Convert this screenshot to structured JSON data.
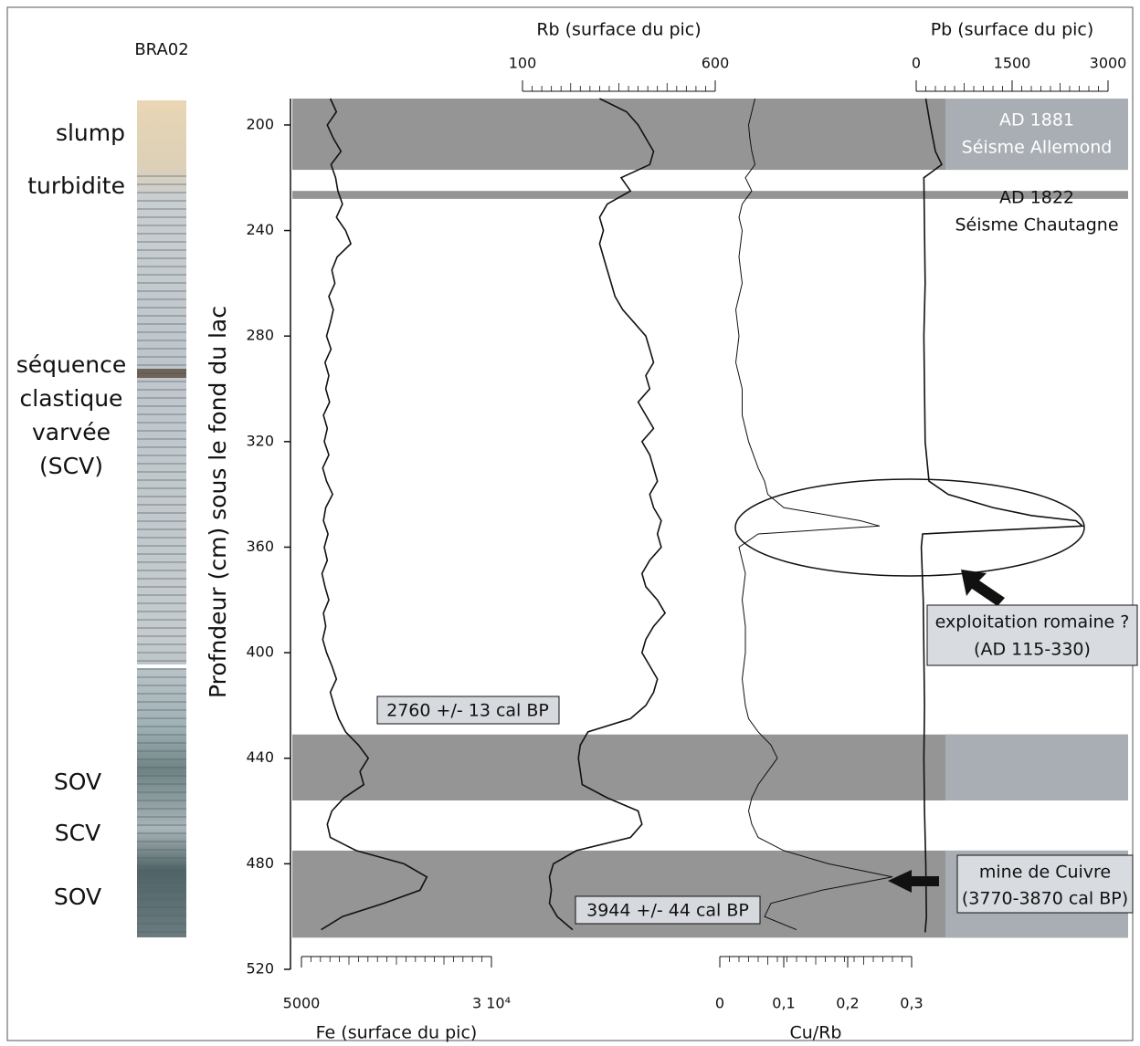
{
  "core": {
    "name": "BRA02",
    "units": [
      "slump",
      "turbidite",
      "séquence",
      "clastique",
      "varvée",
      "(SCV)",
      "SOV",
      "SCV",
      "SOV"
    ]
  },
  "chart_data": [
    {
      "type": "line",
      "xlabel": "Fe (surface du pic)",
      "axis_position": "bottom",
      "xlim": [
        5000,
        30000
      ],
      "xticks": [
        5000,
        {
          "value": 30000,
          "label": "3 10⁴"
        }
      ],
      "ylabel": "Profndeur (cm) sous le fond du lac",
      "ylim": [
        190,
        520
      ],
      "yticks": [
        200,
        240,
        280,
        320,
        360,
        400,
        440,
        480,
        520
      ],
      "bands": [
        [
          190,
          217
        ],
        [
          225,
          228
        ],
        [
          431,
          456
        ],
        [
          475,
          508
        ]
      ],
      "annotations": [
        "AD 1881",
        "Séisme Allemond",
        "AD 1822",
        "Séisme Chautagne",
        "exploitation romaine ?",
        "(AD 115-330)",
        "mine de Cuivre",
        "(3770-3870 cal BP)",
        "2760 +/- 13 cal BP",
        "3944  +/- 44 cal BP"
      ],
      "y": [
        190,
        195,
        200,
        205,
        210,
        215,
        220,
        225,
        230,
        235,
        240,
        245,
        250,
        255,
        260,
        265,
        270,
        275,
        280,
        285,
        290,
        295,
        300,
        305,
        310,
        315,
        320,
        325,
        330,
        335,
        340,
        345,
        350,
        355,
        360,
        365,
        370,
        375,
        380,
        385,
        390,
        395,
        400,
        405,
        410,
        415,
        420,
        425,
        430,
        435,
        440,
        445,
        450,
        455,
        460,
        465,
        470,
        475,
        480,
        485,
        490,
        495,
        500,
        505
      ],
      "values": [
        8800,
        9600,
        8400,
        9200,
        10200,
        8900,
        9500,
        9800,
        10400,
        9600,
        10800,
        11500,
        9700,
        9000,
        9400,
        8600,
        9200,
        8800,
        8300,
        8900,
        8100,
        8600,
        8200,
        8700,
        7900,
        8400,
        8000,
        8600,
        7800,
        8300,
        9100,
        8200,
        7900,
        8500,
        8000,
        8400,
        7700,
        8100,
        8600,
        7900,
        8200,
        7800,
        8300,
        9000,
        9600,
        8800,
        9300,
        9900,
        10800,
        12500,
        13800,
        12700,
        13200,
        10600,
        9000,
        8400,
        8800,
        12200,
        18500,
        21500,
        20600,
        15800,
        10400,
        7600
      ]
    },
    {
      "type": "line",
      "xlabel": "Rb (surface du pic)",
      "axis_position": "top",
      "xlim": [
        100,
        600
      ],
      "xticks": [
        100,
        600
      ],
      "y": [
        190,
        195,
        200,
        205,
        210,
        215,
        220,
        225,
        230,
        235,
        240,
        245,
        250,
        255,
        260,
        265,
        270,
        275,
        280,
        285,
        290,
        295,
        300,
        305,
        310,
        315,
        320,
        325,
        330,
        335,
        340,
        345,
        350,
        355,
        360,
        365,
        370,
        375,
        380,
        385,
        390,
        395,
        400,
        405,
        410,
        415,
        420,
        425,
        430,
        435,
        440,
        445,
        450,
        455,
        460,
        465,
        470,
        475,
        480,
        485,
        490,
        495,
        500,
        505
      ],
      "values": [
        300,
        370,
        400,
        420,
        440,
        430,
        356,
        380,
        320,
        300,
        310,
        300,
        310,
        320,
        330,
        340,
        360,
        390,
        420,
        430,
        440,
        420,
        430,
        400,
        420,
        440,
        410,
        430,
        440,
        450,
        430,
        440,
        460,
        450,
        460,
        430,
        410,
        420,
        450,
        470,
        440,
        420,
        410,
        430,
        450,
        440,
        420,
        380,
        270,
        250,
        245,
        250,
        255,
        320,
        400,
        410,
        380,
        240,
        180,
        170,
        175,
        170,
        190,
        230
      ]
    },
    {
      "type": "line",
      "xlabel": "Cu/Rb",
      "axis_position": "bottom",
      "xlim": [
        0,
        0.3
      ],
      "xticks": [
        0,
        {
          "value": 0.1,
          "label": "0,1"
        },
        {
          "value": 0.2,
          "label": "0,2"
        },
        {
          "value": 0.3,
          "label": "0,3"
        }
      ],
      "y": [
        190,
        195,
        200,
        205,
        210,
        215,
        220,
        225,
        230,
        235,
        240,
        250,
        260,
        270,
        280,
        290,
        300,
        310,
        320,
        330,
        335,
        340,
        345,
        350,
        352,
        355,
        360,
        370,
        380,
        390,
        400,
        410,
        420,
        425,
        430,
        435,
        440,
        445,
        450,
        455,
        460,
        465,
        470,
        475,
        480,
        485,
        490,
        495,
        500,
        505
      ],
      "values": [
        0.055,
        0.05,
        0.045,
        0.047,
        0.05,
        0.055,
        0.04,
        0.05,
        0.035,
        0.03,
        0.035,
        0.03,
        0.035,
        0.025,
        0.03,
        0.025,
        0.035,
        0.035,
        0.045,
        0.06,
        0.07,
        0.075,
        0.1,
        0.22,
        0.25,
        0.06,
        0.03,
        0.04,
        0.035,
        0.04,
        0.04,
        0.035,
        0.04,
        0.045,
        0.06,
        0.08,
        0.09,
        0.075,
        0.06,
        0.05,
        0.045,
        0.05,
        0.06,
        0.1,
        0.17,
        0.27,
        0.16,
        0.08,
        0.07,
        0.12
      ]
    },
    {
      "type": "line",
      "xlabel": "Pb (surface du pic)",
      "axis_position": "top",
      "xlim": [
        0,
        3000
      ],
      "xticks": [
        0,
        1500,
        3000
      ],
      "y": [
        190,
        200,
        210,
        215,
        220,
        240,
        260,
        280,
        300,
        320,
        335,
        340,
        345,
        348,
        350,
        352,
        355,
        360,
        380,
        400,
        420,
        440,
        460,
        480,
        500,
        506
      ],
      "values": [
        150,
        220,
        300,
        400,
        120,
        130,
        140,
        120,
        130,
        140,
        200,
        500,
        1200,
        1800,
        2500,
        2600,
        100,
        80,
        110,
        120,
        130,
        120,
        130,
        150,
        160,
        140
      ]
    }
  ]
}
